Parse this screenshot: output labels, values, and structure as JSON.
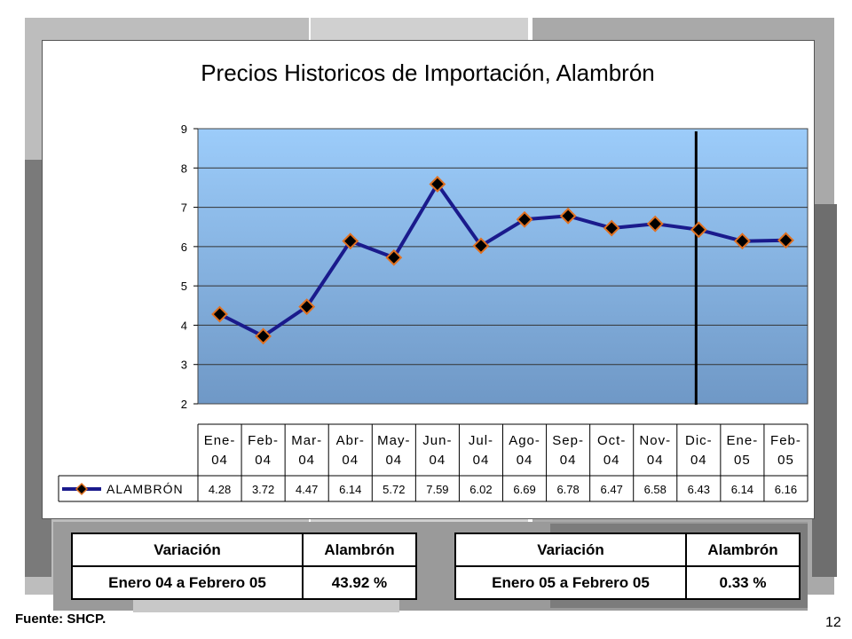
{
  "chart_data": {
    "type": "line",
    "title": "Precios Historicos de Importación, Alambrón",
    "categories": [
      [
        "Ene-",
        "04"
      ],
      [
        "Feb-",
        "04"
      ],
      [
        "Mar-",
        "04"
      ],
      [
        "Abr-",
        "04"
      ],
      [
        "May-",
        "04"
      ],
      [
        "Jun-",
        "04"
      ],
      [
        "Jul-",
        "04"
      ],
      [
        "Ago-",
        "04"
      ],
      [
        "Sep-",
        "04"
      ],
      [
        "Oct-",
        "04"
      ],
      [
        "Nov-",
        "04"
      ],
      [
        "Dic-",
        "04"
      ],
      [
        "Ene-",
        "05"
      ],
      [
        "Feb-",
        "05"
      ]
    ],
    "series": [
      {
        "name": "ALAMBRÓN",
        "values": [
          4.28,
          3.72,
          4.47,
          6.14,
          5.72,
          7.59,
          6.02,
          6.69,
          6.78,
          6.47,
          6.58,
          6.43,
          6.14,
          6.16
        ],
        "labels": [
          "4.28",
          "3.72",
          "4.47",
          "6.14",
          "5.72",
          "7.59",
          "6.02",
          "6.69",
          "6.78",
          "6.47",
          "6.58",
          "6.43",
          "6.14",
          "6.16"
        ]
      }
    ],
    "ylim": [
      2,
      9
    ],
    "yticks": [
      "9",
      "8",
      "7",
      "6",
      "5",
      "4",
      "3",
      "2"
    ],
    "xlabel": "",
    "ylabel": "",
    "grid": true,
    "data_table": true,
    "vertical_marker_after": "Dic-04",
    "colors": {
      "line": "#1a1a8c",
      "marker_fill": "#000000",
      "marker_edge": "#e07020",
      "plot_bg_top": "#9cccfa",
      "plot_bg_bottom": "#6f98c6",
      "marker_line": "#000000"
    }
  },
  "variation_tables": [
    {
      "header_left": "Variación",
      "header_right": "Alambrón",
      "period": "Enero 04 a Febrero 05",
      "value": "43.92 %"
    },
    {
      "header_left": "Variación",
      "header_right": "Alambrón",
      "period": "Enero 05 a Febrero 05",
      "value": "0.33 %"
    }
  ],
  "footer": {
    "source": "Fuente: SHCP.",
    "page_number": "12"
  }
}
